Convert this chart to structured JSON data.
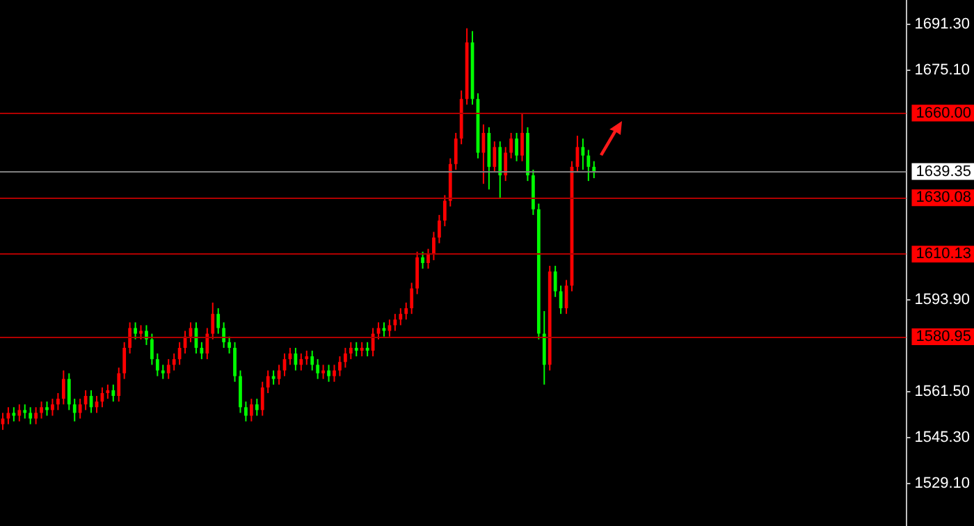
{
  "chart_data": {
    "type": "candlestick",
    "categories": [
      null,
      null,
      null,
      null,
      null,
      null,
      null,
      null,
      null,
      null,
      null,
      null,
      null,
      null,
      null,
      null,
      null,
      null,
      null,
      null,
      null,
      null,
      null,
      null,
      null,
      null,
      null,
      null,
      null,
      null,
      null,
      null,
      null,
      null,
      null,
      null,
      null,
      null,
      null,
      null,
      null,
      null,
      null,
      null,
      null,
      null,
      null,
      null,
      null,
      null,
      null,
      null,
      null,
      null,
      null,
      null,
      null,
      null,
      null,
      null,
      null,
      null,
      null,
      null,
      null,
      null,
      null,
      null,
      null,
      null,
      null,
      null,
      null,
      null,
      null,
      null,
      null,
      null,
      null,
      null,
      null,
      null,
      null,
      null,
      null,
      null,
      null,
      null,
      null,
      null,
      null,
      null,
      null,
      null,
      null,
      null,
      null,
      null,
      null,
      null,
      null,
      null,
      null,
      null,
      null,
      null,
      null,
      null,
      null,
      null,
      null,
      null,
      null,
      null,
      null,
      null,
      null,
      null,
      null,
      null,
      null,
      null,
      null,
      null,
      null,
      null,
      null,
      null,
      null,
      null,
      null,
      null,
      null,
      null,
      null,
      null,
      null,
      null,
      null,
      null,
      null,
      null,
      null,
      null,
      null,
      null,
      null,
      null,
      null,
      null,
      null,
      null,
      null,
      null,
      null,
      null,
      null,
      null,
      null,
      null,
      null,
      null,
      null,
      null
    ],
    "ohlc": [
      [
        1550,
        1554,
        1548,
        1552
      ],
      [
        1552,
        1556,
        1550,
        1554
      ],
      [
        1554,
        1556,
        1551,
        1553
      ],
      [
        1553,
        1557,
        1551,
        1555
      ],
      [
        1555,
        1557,
        1552,
        1554
      ],
      [
        1554,
        1556,
        1550,
        1552
      ],
      [
        1552,
        1556,
        1550,
        1554
      ],
      [
        1554,
        1558,
        1552,
        1556
      ],
      [
        1556,
        1558,
        1553,
        1555
      ],
      [
        1555,
        1559,
        1553,
        1557
      ],
      [
        1557,
        1561,
        1555,
        1559
      ],
      [
        1559,
        1569,
        1557,
        1566
      ],
      [
        1566,
        1568,
        1555,
        1557
      ],
      [
        1557,
        1559,
        1551,
        1554
      ],
      [
        1554,
        1559,
        1552,
        1557
      ],
      [
        1557,
        1562,
        1555,
        1560
      ],
      [
        1560,
        1562,
        1554,
        1556
      ],
      [
        1556,
        1560,
        1554,
        1558
      ],
      [
        1558,
        1563,
        1556,
        1561
      ],
      [
        1561,
        1564,
        1559,
        1562
      ],
      [
        1562,
        1564,
        1558,
        1560
      ],
      [
        1560,
        1570,
        1558,
        1568
      ],
      [
        1568,
        1579,
        1566,
        1577
      ],
      [
        1577,
        1586,
        1575,
        1584
      ],
      [
        1584,
        1586,
        1580,
        1582
      ],
      [
        1582,
        1585,
        1580,
        1583
      ],
      [
        1583,
        1585,
        1578,
        1580
      ],
      [
        1580,
        1582,
        1571,
        1573
      ],
      [
        1573,
        1575,
        1567,
        1569
      ],
      [
        1569,
        1571,
        1566,
        1568
      ],
      [
        1568,
        1573,
        1566,
        1571
      ],
      [
        1571,
        1575,
        1569,
        1573
      ],
      [
        1573,
        1579,
        1571,
        1577
      ],
      [
        1577,
        1583,
        1575,
        1581
      ],
      [
        1581,
        1586,
        1579,
        1584
      ],
      [
        1584,
        1586,
        1575,
        1577
      ],
      [
        1577,
        1579,
        1573,
        1575
      ],
      [
        1575,
        1584,
        1573,
        1582
      ],
      [
        1582,
        1593,
        1580,
        1589
      ],
      [
        1589,
        1591,
        1582,
        1584
      ],
      [
        1584,
        1586,
        1577,
        1579
      ],
      [
        1579,
        1581,
        1575,
        1577
      ],
      [
        1577,
        1579,
        1565,
        1567
      ],
      [
        1567,
        1569,
        1554,
        1556
      ],
      [
        1556,
        1558,
        1551,
        1553
      ],
      [
        1553,
        1559,
        1551,
        1557
      ],
      [
        1557,
        1559,
        1553,
        1555
      ],
      [
        1555,
        1565,
        1553,
        1563
      ],
      [
        1563,
        1569,
        1561,
        1567
      ],
      [
        1567,
        1569,
        1564,
        1566
      ],
      [
        1566,
        1571,
        1564,
        1569
      ],
      [
        1569,
        1575,
        1567,
        1573
      ],
      [
        1573,
        1577,
        1571,
        1575
      ],
      [
        1575,
        1577,
        1569,
        1571
      ],
      [
        1571,
        1575,
        1569,
        1573
      ],
      [
        1573,
        1576,
        1571,
        1574
      ],
      [
        1574,
        1576,
        1569,
        1571
      ],
      [
        1571,
        1573,
        1566,
        1568
      ],
      [
        1568,
        1571,
        1566,
        1569
      ],
      [
        1569,
        1571,
        1565,
        1567
      ],
      [
        1567,
        1571,
        1565,
        1569
      ],
      [
        1569,
        1574,
        1567,
        1572
      ],
      [
        1572,
        1577,
        1570,
        1575
      ],
      [
        1575,
        1579,
        1573,
        1577
      ],
      [
        1577,
        1579,
        1574,
        1576
      ],
      [
        1576,
        1579,
        1574,
        1577
      ],
      [
        1577,
        1579,
        1574,
        1576
      ],
      [
        1576,
        1584,
        1574,
        1582
      ],
      [
        1582,
        1586,
        1580,
        1584
      ],
      [
        1584,
        1586,
        1581,
        1583
      ],
      [
        1583,
        1587,
        1581,
        1585
      ],
      [
        1585,
        1589,
        1583,
        1587
      ],
      [
        1587,
        1591,
        1585,
        1589
      ],
      [
        1589,
        1593,
        1587,
        1591
      ],
      [
        1591,
        1600,
        1589,
        1598
      ],
      [
        1598,
        1611,
        1596,
        1609
      ],
      [
        1609,
        1611,
        1605,
        1607
      ],
      [
        1607,
        1612,
        1605,
        1610
      ],
      [
        1610,
        1618,
        1608,
        1616
      ],
      [
        1616,
        1624,
        1614,
        1622
      ],
      [
        1622,
        1631,
        1620,
        1629
      ],
      [
        1629,
        1644,
        1627,
        1642
      ],
      [
        1642,
        1653,
        1640,
        1651
      ],
      [
        1651,
        1668,
        1649,
        1665
      ],
      [
        1665,
        1690,
        1663,
        1685
      ],
      [
        1685,
        1689,
        1663,
        1665
      ],
      [
        1665,
        1667,
        1644,
        1646
      ],
      [
        1646,
        1656,
        1635,
        1653
      ],
      [
        1653,
        1655,
        1633,
        1641
      ],
      [
        1641,
        1650,
        1639,
        1648
      ],
      [
        1648,
        1650,
        1630,
        1638
      ],
      [
        1638,
        1648,
        1636,
        1646
      ],
      [
        1646,
        1653,
        1644,
        1651
      ],
      [
        1651,
        1653,
        1643,
        1645
      ],
      [
        1645,
        1660,
        1643,
        1653
      ],
      [
        1653,
        1655,
        1636,
        1638
      ],
      [
        1638,
        1640,
        1624,
        1626
      ],
      [
        1626,
        1628,
        1580,
        1582
      ],
      [
        1582,
        1590,
        1564,
        1571
      ],
      [
        1571,
        1606,
        1569,
        1604
      ],
      [
        1604,
        1606,
        1595,
        1597
      ],
      [
        1597,
        1599,
        1589,
        1591
      ],
      [
        1591,
        1601,
        1589,
        1599
      ],
      [
        1599,
        1643,
        1597,
        1641
      ],
      [
        1641,
        1652,
        1639,
        1648
      ],
      [
        1648,
        1651,
        1640,
        1645
      ],
      [
        1645,
        1647,
        1636,
        1641
      ],
      [
        1641,
        1643,
        1637,
        1639
      ],
      null,
      null,
      null,
      null,
      null,
      null,
      null,
      null,
      null,
      null,
      null,
      null,
      null,
      null,
      null,
      null,
      null,
      null,
      null,
      null,
      null,
      null,
      null,
      null,
      null,
      null,
      null,
      null,
      null,
      null,
      null,
      null,
      null,
      null,
      null,
      null,
      null,
      null,
      null,
      null,
      null,
      null,
      null,
      null,
      null,
      null,
      null,
      null,
      null,
      null,
      null,
      null,
      null,
      null,
      null,
      null
    ],
    "colors": [
      "#ff0000",
      "#ff0000",
      "#00ff00",
      "#ff0000",
      "#00ff00",
      "#00ff00",
      "#ff0000",
      "#ff0000",
      "#00ff00",
      "#ff0000",
      "#ff0000",
      "#ff0000",
      "#00ff00",
      "#00ff00",
      "#ff0000",
      "#ff0000",
      "#00ff00",
      "#ff0000",
      "#ff0000",
      "#ff0000",
      "#00ff00",
      "#ff0000",
      "#ff0000",
      "#ff0000",
      "#00ff00",
      "#ff0000",
      "#00ff00",
      "#00ff00",
      "#00ff00",
      "#00ff00",
      "#ff0000",
      "#ff0000",
      "#ff0000",
      "#ff0000",
      "#ff0000",
      "#00ff00",
      "#00ff00",
      "#ff0000",
      "#ff0000",
      "#00ff00",
      "#00ff00",
      "#00ff00",
      "#00ff00",
      "#00ff00",
      "#00ff00",
      "#ff0000",
      "#00ff00",
      "#ff0000",
      "#ff0000",
      "#00ff00",
      "#ff0000",
      "#ff0000",
      "#ff0000",
      "#00ff00",
      "#ff0000",
      "#ff0000",
      "#00ff00",
      "#00ff00",
      "#ff0000",
      "#00ff00",
      "#ff0000",
      "#ff0000",
      "#ff0000",
      "#ff0000",
      "#00ff00",
      "#ff0000",
      "#00ff00",
      "#ff0000",
      "#ff0000",
      "#00ff00",
      "#ff0000",
      "#ff0000",
      "#ff0000",
      "#ff0000",
      "#ff0000",
      "#ff0000",
      "#00ff00",
      "#ff0000",
      "#ff0000",
      "#ff0000",
      "#ff0000",
      "#ff0000",
      "#ff0000",
      "#ff0000",
      "#ff0000",
      "#00ff00",
      "#00ff00",
      "#ff0000",
      "#00ff00",
      "#ff0000",
      "#00ff00",
      "#ff0000",
      "#ff0000",
      "#00ff00",
      "#ff0000",
      "#00ff00",
      "#00ff00",
      "#00ff00",
      "#00ff00",
      "#ff0000",
      "#00ff00",
      "#00ff00",
      "#ff0000",
      "#ff0000",
      "#ff0000",
      "#00ff00",
      "#00ff00",
      "#00ff00",
      null,
      null,
      null,
      null,
      null,
      null,
      null,
      null,
      null,
      null,
      null,
      null,
      null,
      null,
      null,
      null,
      null,
      null,
      null,
      null,
      null,
      null,
      null,
      null,
      null,
      null,
      null,
      null,
      null,
      null,
      null,
      null,
      null,
      null,
      null,
      null,
      null,
      null,
      null,
      null,
      null,
      null,
      null,
      null,
      null,
      null,
      null,
      null,
      null,
      null,
      null,
      null,
      null,
      null,
      null,
      null
    ],
    "ylim": [
      1514,
      1700
    ],
    "yticks": [
      {
        "value": 1691.3,
        "label": "1691.30"
      },
      {
        "value": 1675.1,
        "label": "1675.10"
      },
      {
        "value": 1593.9,
        "label": "1593.90"
      },
      {
        "value": 1561.5,
        "label": "1561.50"
      },
      {
        "value": 1545.3,
        "label": "1545.30"
      },
      {
        "value": 1529.1,
        "label": "1529.10"
      }
    ],
    "tick_labels": "y",
    "ref_lines": [
      {
        "axis": "y",
        "value": 1660.0,
        "label": "1660.00",
        "color": "#b00000"
      },
      {
        "axis": "y",
        "value": 1639.35,
        "label": "1639.35",
        "color": "#808080"
      },
      {
        "axis": "y",
        "value": 1630.08,
        "label": "1630.08",
        "color": "#b00000"
      },
      {
        "axis": "y",
        "value": 1610.13,
        "label": "1610.13",
        "color": "#b00000"
      },
      {
        "axis": "y",
        "value": 1580.95,
        "label": "1580.95",
        "color": "#b00000"
      }
    ]
  }
}
